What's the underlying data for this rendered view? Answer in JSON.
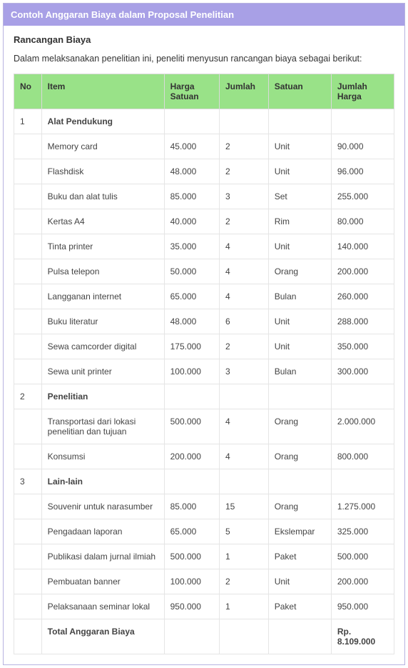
{
  "panel": {
    "title": "Contoh Anggaran Biaya dalam Proposal Penelitian",
    "section_title": "Rancangan Biaya",
    "intro": "Dalam melaksanakan penelitian ini, peneliti menyusun rancangan biaya sebagai berikut:"
  },
  "table": {
    "type": "table",
    "columns": [
      "No",
      "Item",
      "Harga Satuan",
      "Jumlah",
      "Satuan",
      "Jumlah Harga"
    ],
    "header_bg": "#99e288",
    "header_text_color": "#333333",
    "border_color": "#e5e5e5",
    "rows": [
      {
        "kind": "section",
        "no": "1",
        "item": "Alat Pendukung"
      },
      {
        "kind": "data",
        "item": "Memory card",
        "harga": "45.000",
        "jumlah": "2",
        "satuan": "Unit",
        "total": "90.000"
      },
      {
        "kind": "data",
        "item": "Flashdisk",
        "harga": "48.000",
        "jumlah": "2",
        "satuan": "Unit",
        "total": "96.000"
      },
      {
        "kind": "data",
        "item": "Buku dan alat tulis",
        "harga": "85.000",
        "jumlah": "3",
        "satuan": "Set",
        "total": "255.000"
      },
      {
        "kind": "data",
        "item": "Kertas A4",
        "harga": "40.000",
        "jumlah": "2",
        "satuan": "Rim",
        "total": "80.000"
      },
      {
        "kind": "data",
        "item": "Tinta printer",
        "harga": "35.000",
        "jumlah": "4",
        "satuan": "Unit",
        "total": "140.000"
      },
      {
        "kind": "data",
        "item": "Pulsa telepon",
        "harga": "50.000",
        "jumlah": "4",
        "satuan": "Orang",
        "total": "200.000"
      },
      {
        "kind": "data",
        "item": "Langganan internet",
        "harga": "65.000",
        "jumlah": "4",
        "satuan": "Bulan",
        "total": "260.000"
      },
      {
        "kind": "data",
        "item": "Buku literatur",
        "harga": "48.000",
        "jumlah": "6",
        "satuan": "Unit",
        "total": "288.000"
      },
      {
        "kind": "data",
        "item": "Sewa camcorder digital",
        "harga": "175.000",
        "jumlah": "2",
        "satuan": "Unit",
        "total": "350.000"
      },
      {
        "kind": "data",
        "item": "Sewa unit printer",
        "harga": "100.000",
        "jumlah": "3",
        "satuan": "Bulan",
        "total": "300.000"
      },
      {
        "kind": "section",
        "no": "2",
        "item": "Penelitian"
      },
      {
        "kind": "data",
        "item": "Transportasi dari lokasi penelitian dan tujuan",
        "harga": "500.000",
        "jumlah": "4",
        "satuan": "Orang",
        "total": "2.000.000"
      },
      {
        "kind": "data",
        "item": "Konsumsi",
        "harga": "200.000",
        "jumlah": "4",
        "satuan": "Orang",
        "total": "800.000"
      },
      {
        "kind": "section",
        "no": "3",
        "item": "Lain-lain"
      },
      {
        "kind": "data",
        "item": "Souvenir untuk narasumber",
        "harga": "85.000",
        "jumlah": "15",
        "satuan": "Orang",
        "total": "1.275.000"
      },
      {
        "kind": "data",
        "item": "Pengadaan laporan",
        "harga": "65.000",
        "jumlah": "5",
        "satuan": "Ekslempar",
        "total": "325.000"
      },
      {
        "kind": "data",
        "item": "Publikasi dalam jurnal ilmiah",
        "harga": "500.000",
        "jumlah": "1",
        "satuan": "Paket",
        "total": "500.000"
      },
      {
        "kind": "data",
        "item": "Pembuatan banner",
        "harga": "100.000",
        "jumlah": "2",
        "satuan": "Unit",
        "total": "200.000"
      },
      {
        "kind": "data",
        "item": "Pelaksanaan seminar lokal",
        "harga": "950.000",
        "jumlah": "1",
        "satuan": "Paket",
        "total": "950.000"
      },
      {
        "kind": "total",
        "item": "Total Anggaran Biaya",
        "total": "Rp. 8.109.000"
      }
    ]
  },
  "colors": {
    "panel_border": "#b7b3e0",
    "panel_header_bg": "#a8a0e6",
    "panel_header_text": "#ffffff",
    "body_text": "#333333"
  }
}
